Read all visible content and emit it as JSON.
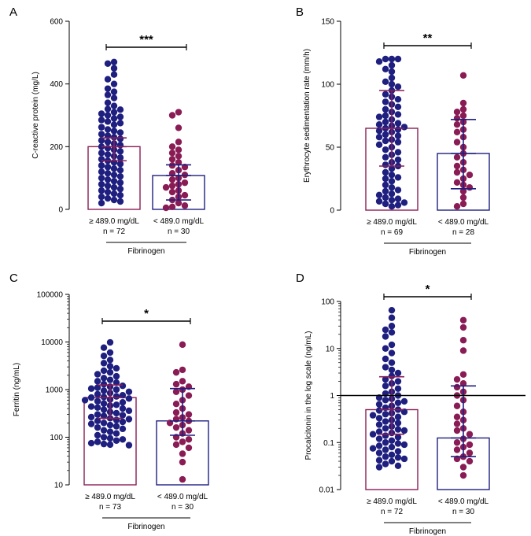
{
  "colors": {
    "group_hi": "#1f1f80",
    "group_lo": "#8a1c55",
    "axis": "#000000"
  },
  "chart_data": [
    {
      "id": "A",
      "type": "scatter",
      "scale": "linear",
      "ylabel": "C-reactive protein (mg/L)",
      "ylim": [
        0,
        600
      ],
      "yticks": [
        0,
        200,
        400,
        600
      ],
      "ytick_labels": [
        "0",
        "200",
        "400",
        "600"
      ],
      "significance": "***",
      "group_label": "Fibrinogen",
      "groups": [
        {
          "label": "≥ 489.0 mg/dL",
          "n_label": "n = 72",
          "bar": 200,
          "err_lo": 155,
          "err_hi": 228,
          "points": [
            470,
            465,
            450,
            430,
            415,
            400,
            385,
            375,
            365,
            355,
            340,
            330,
            320,
            318,
            310,
            305,
            300,
            295,
            290,
            285,
            280,
            275,
            270,
            262,
            255,
            250,
            245,
            240,
            235,
            230,
            225,
            220,
            215,
            210,
            205,
            200,
            195,
            190,
            185,
            180,
            175,
            170,
            165,
            160,
            155,
            150,
            145,
            140,
            135,
            130,
            125,
            120,
            115,
            110,
            105,
            100,
            95,
            90,
            85,
            80,
            75,
            70,
            65,
            60,
            55,
            50,
            45,
            40,
            35,
            30,
            25,
            20
          ]
        },
        {
          "label": "< 489.0 mg/dL",
          "n_label": "n = 30",
          "bar": 108,
          "err_lo": 30,
          "err_hi": 142,
          "points": [
            310,
            300,
            260,
            215,
            200,
            190,
            180,
            170,
            160,
            150,
            140,
            135,
            125,
            115,
            110,
            100,
            95,
            85,
            80,
            75,
            70,
            60,
            55,
            45,
            40,
            30,
            20,
            12,
            8,
            5
          ]
        }
      ]
    },
    {
      "id": "B",
      "type": "scatter",
      "scale": "linear",
      "ylabel": "Erythrocyte sedimentation rate (mm/h)",
      "ylim": [
        0,
        150
      ],
      "yticks": [
        0,
        50,
        100,
        150
      ],
      "ytick_labels": [
        "0",
        "50",
        "100",
        "150"
      ],
      "significance": "**",
      "group_label": "Fibrinogen",
      "groups": [
        {
          "label": "≥ 489.0 mg/dL",
          "n_label": "n = 69",
          "bar": 65,
          "err_lo": 35,
          "err_hi": 95,
          "points": [
            120,
            120,
            120,
            118,
            115,
            112,
            110,
            105,
            102,
            100,
            98,
            95,
            92,
            90,
            88,
            86,
            84,
            82,
            80,
            78,
            76,
            75,
            74,
            72,
            70,
            69,
            68,
            67,
            66,
            65,
            64,
            63,
            62,
            60,
            59,
            58,
            56,
            55,
            54,
            52,
            50,
            48,
            46,
            44,
            42,
            40,
            38,
            36,
            35,
            33,
            30,
            28,
            26,
            25,
            23,
            20,
            18,
            16,
            15,
            13,
            12,
            10,
            9,
            8,
            7,
            6,
            5,
            4,
            3
          ]
        },
        {
          "label": "< 489.0 mg/dL",
          "n_label": "n = 28",
          "bar": 45,
          "err_lo": 17,
          "err_hi": 72,
          "points": [
            107,
            85,
            80,
            78,
            75,
            73,
            70,
            68,
            64,
            62,
            58,
            54,
            50,
            45,
            42,
            38,
            35,
            32,
            30,
            28,
            25,
            22,
            20,
            18,
            15,
            10,
            5,
            3
          ]
        }
      ]
    },
    {
      "id": "C",
      "type": "scatter",
      "scale": "log",
      "ylabel": "Ferritin (ng/mL)",
      "ylim": [
        10,
        100000
      ],
      "yticks": [
        10,
        100,
        1000,
        10000,
        100000
      ],
      "ytick_labels": [
        "10",
        "100",
        "1000",
        "10000",
        "100000"
      ],
      "significance": "*",
      "group_label": "Fibrinogen",
      "groups": [
        {
          "label": "≥ 489.0 mg/dL",
          "n_label": "n = 73",
          "bar": 680,
          "err_lo": 250,
          "err_hi": 1250,
          "points": [
            9800,
            7600,
            6000,
            5100,
            4200,
            3600,
            3100,
            2800,
            2500,
            2300,
            2100,
            1900,
            1750,
            1600,
            1500,
            1400,
            1300,
            1200,
            1150,
            1100,
            1050,
            1000,
            950,
            900,
            850,
            800,
            760,
            720,
            700,
            680,
            650,
            620,
            600,
            570,
            540,
            510,
            480,
            460,
            440,
            420,
            400,
            380,
            360,
            340,
            320,
            300,
            290,
            280,
            265,
            250,
            240,
            230,
            220,
            210,
            200,
            190,
            180,
            170,
            160,
            150,
            140,
            130,
            120,
            110,
            100,
            95,
            90,
            85,
            80,
            75,
            72,
            70,
            68
          ]
        },
        {
          "label": "< 489.0 mg/dL",
          "n_label": "n = 30",
          "bar": 220,
          "err_lo": 110,
          "err_hi": 1050,
          "points": [
            8800,
            2600,
            2300,
            1500,
            1300,
            1150,
            1000,
            900,
            750,
            600,
            500,
            400,
            330,
            300,
            260,
            240,
            220,
            200,
            180,
            160,
            140,
            120,
            100,
            90,
            80,
            70,
            60,
            45,
            30,
            13
          ]
        }
      ]
    },
    {
      "id": "D",
      "type": "scatter",
      "scale": "log",
      "ylabel": "Procalcitonin in the log scale (ng/mL)",
      "ylim": [
        0.01,
        100
      ],
      "yticks": [
        0.01,
        0.1,
        1,
        10,
        100
      ],
      "ytick_labels": [
        "0.01",
        "0.1",
        "1",
        "10",
        "100"
      ],
      "significance": "*",
      "group_label": "Fibrinogen",
      "reference_line": 1,
      "groups": [
        {
          "label": "≥ 489.0 mg/dL",
          "n_label": "n = 72",
          "bar": 0.5,
          "err_lo": 0.15,
          "err_hi": 2.5,
          "points": [
            65,
            45,
            30,
            25,
            22,
            18,
            12,
            10,
            8,
            6,
            5,
            4,
            3.5,
            3,
            2.6,
            2.2,
            2,
            1.8,
            1.6,
            1.4,
            1.2,
            1.1,
            1,
            0.9,
            0.85,
            0.8,
            0.75,
            0.7,
            0.65,
            0.6,
            0.55,
            0.5,
            0.48,
            0.45,
            0.42,
            0.4,
            0.38,
            0.35,
            0.33,
            0.3,
            0.28,
            0.26,
            0.24,
            0.22,
            0.2,
            0.19,
            0.18,
            0.17,
            0.16,
            0.15,
            0.14,
            0.13,
            0.12,
            0.11,
            0.1,
            0.095,
            0.09,
            0.085,
            0.08,
            0.075,
            0.07,
            0.065,
            0.06,
            0.055,
            0.05,
            0.048,
            0.045,
            0.042,
            0.04,
            0.035,
            0.032,
            0.03
          ]
        },
        {
          "label": "< 489.0 mg/dL",
          "n_label": "n = 30",
          "bar": 0.125,
          "err_lo": 0.05,
          "err_hi": 1.6,
          "points": [
            40,
            28,
            15,
            9,
            2.8,
            2.2,
            1.8,
            1.5,
            1.2,
            1,
            0.8,
            0.6,
            0.45,
            0.35,
            0.3,
            0.25,
            0.2,
            0.18,
            0.15,
            0.12,
            0.1,
            0.09,
            0.08,
            0.07,
            0.06,
            0.05,
            0.045,
            0.04,
            0.03,
            0.02
          ]
        }
      ]
    }
  ]
}
